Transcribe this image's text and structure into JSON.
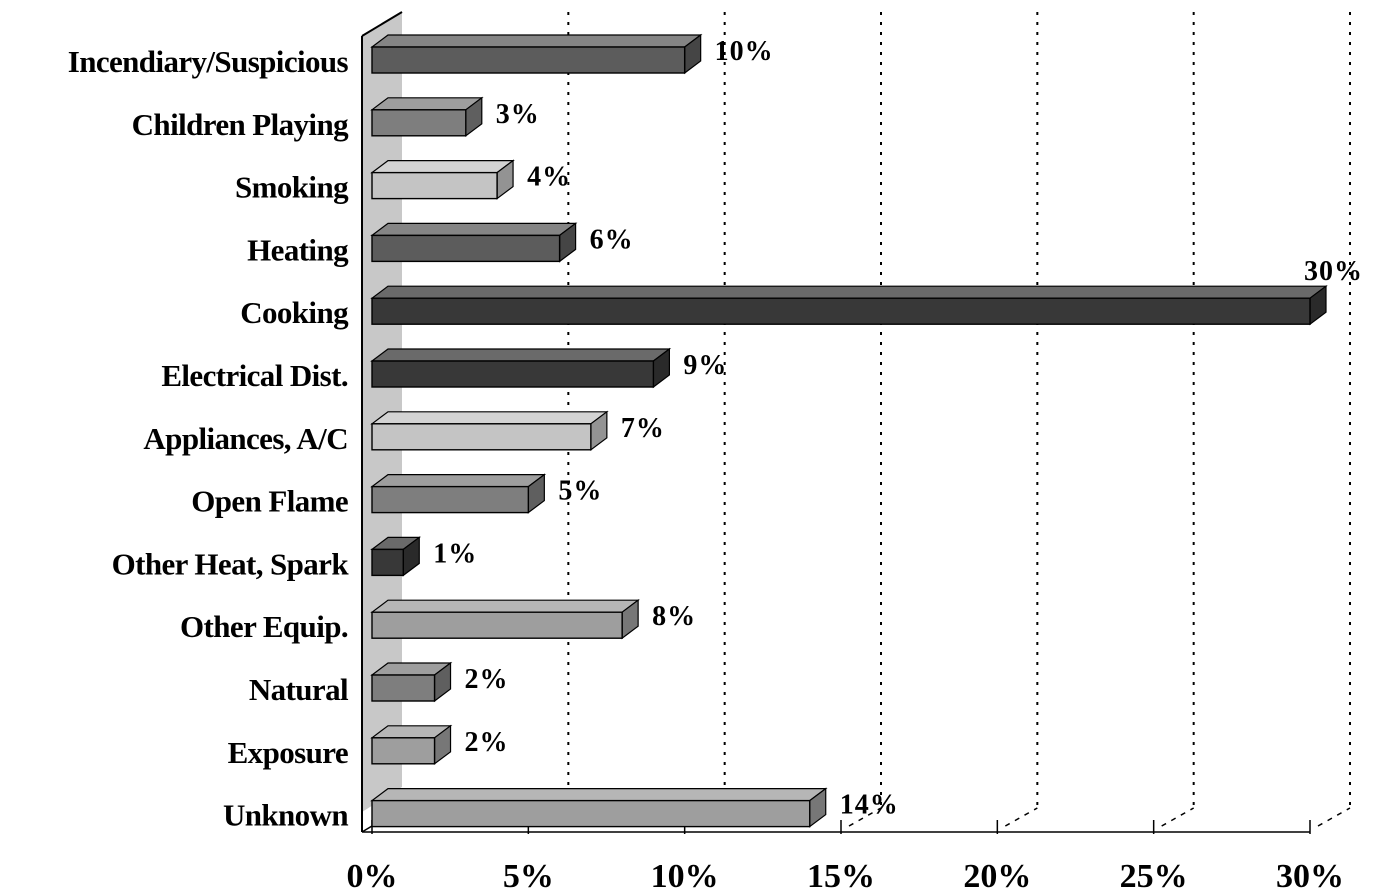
{
  "chart_data": {
    "type": "bar",
    "orientation": "horizontal",
    "style": "3d",
    "title": "",
    "xlabel": "",
    "ylabel": "",
    "xlim": [
      0,
      30
    ],
    "x_ticks": [
      0,
      5,
      10,
      15,
      20,
      25,
      30
    ],
    "x_tick_labels": [
      "0%",
      "5%",
      "10%",
      "15%",
      "20%",
      "25%",
      "30%"
    ],
    "grid": "vertical dotted",
    "legend": "none",
    "categories": [
      "Incendiary/Suspicious",
      "Children Playing",
      "Smoking",
      "Heating",
      "Cooking",
      "Electrical Dist.",
      "Appliances, A/C",
      "Open Flame",
      "Other Heat, Spark",
      "Other Equip.",
      "Natural",
      "Exposure",
      "Unknown"
    ],
    "values": [
      10,
      3,
      4,
      6,
      30,
      9,
      7,
      5,
      1,
      8,
      2,
      2,
      14
    ],
    "data_labels": [
      "10%",
      "3%",
      "4%",
      "6%",
      "30%",
      "9%",
      "7%",
      "5%",
      "1%",
      "8%",
      "2%",
      "2%",
      "14%"
    ],
    "bar_colors": [
      "#5c5c5c",
      "#7e7e7e",
      "#c4c4c4",
      "#5c5c5c",
      "#383838",
      "#383838",
      "#c4c4c4",
      "#7e7e7e",
      "#383838",
      "#9e9e9e",
      "#7e7e7e",
      "#9e9e9e",
      "#9e9e9e"
    ]
  }
}
